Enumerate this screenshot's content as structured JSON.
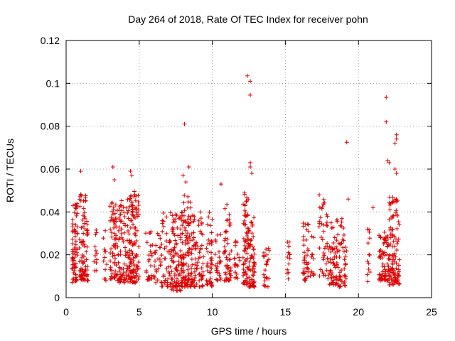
{
  "chart_data": {
    "type": "scatter",
    "title": "Day 264 of 2018, Rate Of TEC Index for receiver pohn",
    "xlabel": "GPS time / hours",
    "ylabel": "ROTI / TECUs",
    "xlim": [
      0,
      25
    ],
    "ylim": [
      0,
      0.12
    ],
    "x_ticks": [
      0,
      5,
      10,
      15,
      20,
      25
    ],
    "x_tick_labels": [
      "0",
      "5",
      "10",
      "15",
      "20",
      "25"
    ],
    "y_ticks": [
      0,
      0.02,
      0.04,
      0.06,
      0.08,
      0.1,
      0.12
    ],
    "y_tick_labels": [
      "0",
      "0.02",
      "0.04",
      "0.06",
      "0.08",
      "0.1",
      "0.12"
    ],
    "grid": true,
    "marker": "+",
    "color": "#dd0000",
    "clusters": [
      {
        "x_range": [
          0.4,
          0.8
        ],
        "y_range": [
          0.007,
          0.044
        ],
        "count": 70
      },
      {
        "x_range": [
          0.9,
          1.5
        ],
        "y_range": [
          0.008,
          0.049
        ],
        "count": 90
      },
      {
        "x_range": [
          1.9,
          2.1
        ],
        "y_range": [
          0.012,
          0.032
        ],
        "count": 12
      },
      {
        "x_range": [
          2.5,
          2.8
        ],
        "y_range": [
          0.008,
          0.033
        ],
        "count": 12
      },
      {
        "x_range": [
          3.0,
          3.6
        ],
        "y_range": [
          0.008,
          0.045
        ],
        "count": 70
      },
      {
        "x_range": [
          3.6,
          4.3
        ],
        "y_range": [
          0.007,
          0.046
        ],
        "count": 80
      },
      {
        "x_range": [
          4.3,
          5.0
        ],
        "y_range": [
          0.007,
          0.05
        ],
        "count": 120
      },
      {
        "x_range": [
          5.4,
          5.9
        ],
        "y_range": [
          0.008,
          0.031
        ],
        "count": 25
      },
      {
        "x_range": [
          6.0,
          6.5
        ],
        "y_range": [
          0.007,
          0.03
        ],
        "count": 25
      },
      {
        "x_range": [
          6.5,
          7.2
        ],
        "y_range": [
          0.005,
          0.04
        ],
        "count": 45
      },
      {
        "x_range": [
          7.2,
          7.9
        ],
        "y_range": [
          0.003,
          0.04
        ],
        "count": 90
      },
      {
        "x_range": [
          7.9,
          8.6
        ],
        "y_range": [
          0.005,
          0.048
        ],
        "count": 110
      },
      {
        "x_range": [
          8.6,
          9.4
        ],
        "y_range": [
          0.005,
          0.04
        ],
        "count": 75
      },
      {
        "x_range": [
          9.6,
          10.0
        ],
        "y_range": [
          0.005,
          0.04
        ],
        "count": 45
      },
      {
        "x_range": [
          10.2,
          10.6
        ],
        "y_range": [
          0.008,
          0.03
        ],
        "count": 25
      },
      {
        "x_range": [
          10.8,
          11.3
        ],
        "y_range": [
          0.008,
          0.047
        ],
        "count": 50
      },
      {
        "x_range": [
          11.5,
          11.9
        ],
        "y_range": [
          0.009,
          0.03
        ],
        "count": 20
      },
      {
        "x_range": [
          12.1,
          12.5
        ],
        "y_range": [
          0.006,
          0.05
        ],
        "count": 70
      },
      {
        "x_range": [
          12.5,
          12.9
        ],
        "y_range": [
          0.005,
          0.038
        ],
        "count": 60
      },
      {
        "x_range": [
          13.5,
          13.9
        ],
        "y_range": [
          0.005,
          0.025
        ],
        "count": 25
      },
      {
        "x_range": [
          15.1,
          15.4
        ],
        "y_range": [
          0.008,
          0.026
        ],
        "count": 12
      },
      {
        "x_range": [
          16.2,
          16.6
        ],
        "y_range": [
          0.008,
          0.036
        ],
        "count": 40
      },
      {
        "x_range": [
          16.7,
          17.0
        ],
        "y_range": [
          0.01,
          0.03
        ],
        "count": 12
      },
      {
        "x_range": [
          17.3,
          17.9
        ],
        "y_range": [
          0.01,
          0.048
        ],
        "count": 40
      },
      {
        "x_range": [
          17.9,
          18.5
        ],
        "y_range": [
          0.006,
          0.035
        ],
        "count": 50
      },
      {
        "x_range": [
          18.5,
          19.2
        ],
        "y_range": [
          0.005,
          0.037
        ],
        "count": 60
      },
      {
        "x_range": [
          20.6,
          20.8
        ],
        "y_range": [
          0.006,
          0.032
        ],
        "count": 10
      },
      {
        "x_range": [
          21.4,
          22.1
        ],
        "y_range": [
          0.008,
          0.031
        ],
        "count": 80
      },
      {
        "x_range": [
          22.1,
          22.8
        ],
        "y_range": [
          0.006,
          0.047
        ],
        "count": 110
      }
    ],
    "outliers": [
      {
        "x": 1.0,
        "y": 0.059
      },
      {
        "x": 3.2,
        "y": 0.061
      },
      {
        "x": 3.3,
        "y": 0.055
      },
      {
        "x": 4.4,
        "y": 0.059
      },
      {
        "x": 4.5,
        "y": 0.057
      },
      {
        "x": 8.0,
        "y": 0.057
      },
      {
        "x": 8.1,
        "y": 0.081
      },
      {
        "x": 8.4,
        "y": 0.061
      },
      {
        "x": 8.2,
        "y": 0.054
      },
      {
        "x": 10.6,
        "y": 0.053
      },
      {
        "x": 12.4,
        "y": 0.1035
      },
      {
        "x": 12.6,
        "y": 0.101
      },
      {
        "x": 12.6,
        "y": 0.0945
      },
      {
        "x": 12.6,
        "y": 0.063
      },
      {
        "x": 12.6,
        "y": 0.061
      },
      {
        "x": 12.7,
        "y": 0.058
      },
      {
        "x": 19.2,
        "y": 0.0725
      },
      {
        "x": 21.9,
        "y": 0.0935
      },
      {
        "x": 21.9,
        "y": 0.082
      },
      {
        "x": 22.0,
        "y": 0.064
      },
      {
        "x": 22.1,
        "y": 0.063
      },
      {
        "x": 22.5,
        "y": 0.072
      },
      {
        "x": 22.6,
        "y": 0.076
      },
      {
        "x": 22.6,
        "y": 0.074
      },
      {
        "x": 22.5,
        "y": 0.06
      },
      {
        "x": 22.6,
        "y": 0.058
      },
      {
        "x": 19.3,
        "y": 0.046
      },
      {
        "x": 21.0,
        "y": 0.042
      },
      {
        "x": 20.6,
        "y": 0.032
      },
      {
        "x": 15.3,
        "y": 0.02
      },
      {
        "x": 15.2,
        "y": 0.021
      },
      {
        "x": 20.6,
        "y": 0.017
      },
      {
        "x": 20.7,
        "y": 0.016
      }
    ]
  }
}
